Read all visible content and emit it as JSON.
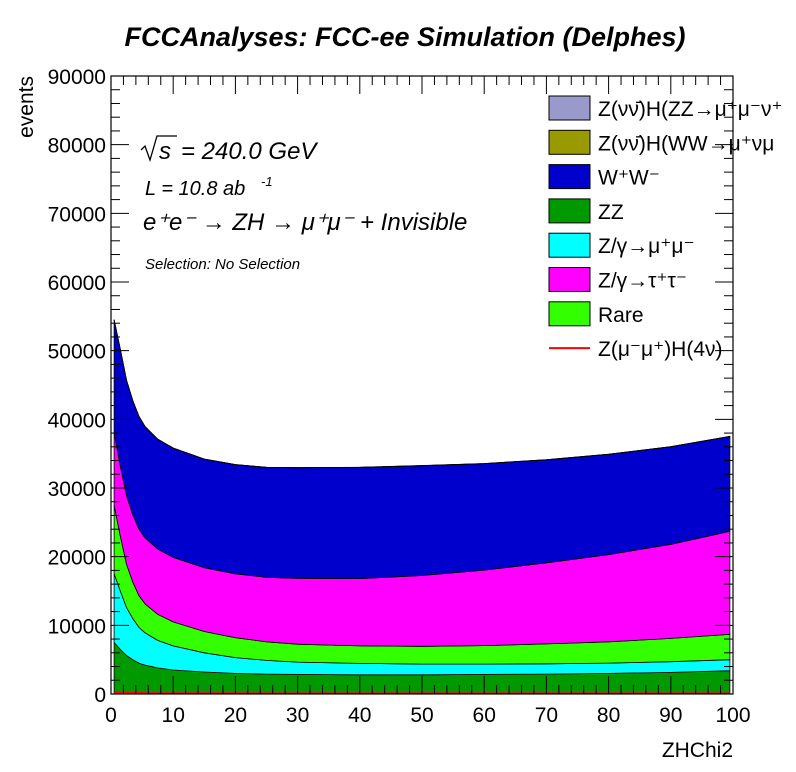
{
  "chart_data": {
    "type": "area",
    "title": "FCCAnalyses: FCC-ee Simulation (Delphes)",
    "xlabel": "ZHChi2",
    "ylabel": "events",
    "xlim": [
      0,
      100
    ],
    "ylim": [
      0,
      90000
    ],
    "x_ticks": [
      "0",
      "10",
      "20",
      "30",
      "40",
      "50",
      "60",
      "70",
      "80",
      "90",
      "100"
    ],
    "y_ticks": [
      "0",
      "10000",
      "20000",
      "30000",
      "40000",
      "50000",
      "60000",
      "70000",
      "80000",
      "90000"
    ],
    "stacked": true,
    "annotations": {
      "sqrt_s_label": "s",
      "sqrt_s_value": "= 240.0 GeV",
      "luminosity_main": "L = 10.8 ab",
      "luminosity_exp": "-1",
      "process": "e⁺e⁻ → ZH → μ⁺μ⁻ + Invisible",
      "selection": "Selection: No Selection"
    },
    "legend_position": "top-right",
    "legend": [
      {
        "label": "Z(νν̄)H(ZZ→μ⁺μ⁻ν⁺",
        "color": "#9999cc",
        "kind": "box"
      },
      {
        "label": "Z(νν̄)H(WW→μ⁺νμ",
        "color": "#999900",
        "kind": "box"
      },
      {
        "label": "W⁺W⁻",
        "color": "#0000cc",
        "kind": "box"
      },
      {
        "label": "ZZ",
        "color": "#009900",
        "kind": "box"
      },
      {
        "label": "Z/γ→μ⁺μ⁻",
        "color": "#00ffff",
        "kind": "box"
      },
      {
        "label": "Z/γ→τ⁺τ⁻",
        "color": "#ff00ff",
        "kind": "box"
      },
      {
        "label": "Rare",
        "color": "#33ff00",
        "kind": "box"
      },
      {
        "label": "Z(μ⁻μ⁺)H(4ν)",
        "color": "#ff0000",
        "kind": "line"
      }
    ],
    "x": [
      0.5,
      1.5,
      2.5,
      3.5,
      4.5,
      5.5,
      7.5,
      10,
      15,
      20,
      25,
      30,
      40,
      50,
      60,
      70,
      80,
      90,
      99.5
    ],
    "series": [
      {
        "name": "ZZ",
        "color": "#009900",
        "values": [
          7500,
          6500,
          5600,
          5000,
          4500,
          4200,
          3800,
          3500,
          3200,
          3000,
          2900,
          2850,
          2800,
          2800,
          2850,
          2900,
          3000,
          3150,
          3400
        ]
      },
      {
        "name": "Z/γ→μ⁺μ⁻",
        "color": "#00ffff",
        "values": [
          10000,
          8500,
          7000,
          6000,
          5200,
          4700,
          4000,
          3500,
          2800,
          2300,
          2000,
          1800,
          1650,
          1550,
          1500,
          1500,
          1500,
          1550,
          1600
        ]
      },
      {
        "name": "Rare",
        "color": "#33ff00",
        "values": [
          10000,
          8000,
          6300,
          5300,
          4600,
          4200,
          3800,
          3500,
          3100,
          2900,
          2700,
          2600,
          2550,
          2600,
          2700,
          2900,
          3100,
          3400,
          3700
        ]
      },
      {
        "name": "Z/γ→τ⁺τ⁻",
        "color": "#ff00ff",
        "values": [
          10500,
          10200,
          10000,
          9800,
          9700,
          9600,
          9500,
          9400,
          9300,
          9300,
          9400,
          9600,
          9800,
          10300,
          11000,
          11800,
          12700,
          13700,
          15000
        ]
      },
      {
        "name": "W⁺W⁻",
        "color": "#0000cc",
        "values": [
          16500,
          17000,
          16800,
          16600,
          16400,
          16200,
          16000,
          15900,
          15800,
          15900,
          16000,
          16100,
          16200,
          16000,
          15500,
          15000,
          14600,
          14200,
          13800
        ]
      },
      {
        "name": "Z(νν̄)H(WW→μ⁺νμ",
        "color": "#999900",
        "values": [
          10,
          10,
          10,
          10,
          10,
          10,
          10,
          10,
          10,
          10,
          10,
          10,
          10,
          10,
          10,
          10,
          10,
          10,
          10
        ]
      },
      {
        "name": "Z(νν̄)H(ZZ→μ⁺μ⁻ν⁺",
        "color": "#9999cc",
        "values": [
          10,
          10,
          10,
          10,
          10,
          10,
          10,
          10,
          10,
          10,
          10,
          10,
          10,
          10,
          10,
          10,
          10,
          10,
          10
        ]
      }
    ],
    "overlay_line": {
      "name": "Z(μ⁻μ⁺)H(4ν)",
      "color": "#ff0000",
      "values": [
        200,
        180,
        160,
        150,
        140,
        130,
        120,
        110,
        100,
        95,
        90,
        90,
        90,
        90,
        90,
        90,
        90,
        90,
        90
      ]
    }
  }
}
